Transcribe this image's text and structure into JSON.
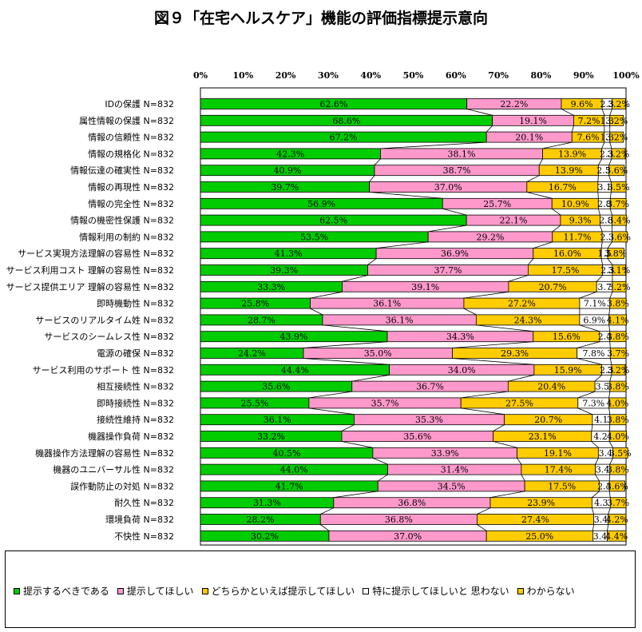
{
  "title": "図９「在宅ヘルスケア」機能の評価指標提示意向",
  "chart_data": {
    "type": "bar",
    "orientation": "horizontal",
    "stacked": true,
    "percent": true,
    "xlim": [
      0,
      100
    ],
    "ticks": [
      "0%",
      "10%",
      "20%",
      "30%",
      "40%",
      "50%",
      "60%",
      "70%",
      "80%",
      "90%",
      "100%"
    ],
    "legend_position": "bottom",
    "categories": [
      "IDの保護 N=832",
      "属性情報の保護 N=832",
      "情報の信頼性 N=832",
      "情報の規格化 N=832",
      "情報伝達の確実性 N=832",
      "情報の再現性 N=832",
      "情報の完全性 N=832",
      "情報の機密性保護 N=832",
      "情報利用の制約 N=832",
      "サービス実現方法理解の容易性 N=832",
      "サービス利用コスト 理解の容易性 N=832",
      "サービス提供エリア 理解の容易性 N=832",
      "即時機動性 N=832",
      "サービスのリアルタイム姓 N=832",
      "サービスのシームレス性 N=832",
      "電源の確保 N=832",
      "サービス利用のサポート 性 N=832",
      "相互接続性 N=832",
      "即時接続性 N=832",
      "接続性維持 N=832",
      "機器操作負荷 N=832",
      "機器操作方法理解の容易性 N=832",
      "機器のユニバーサル性 N=832",
      "誤作動防止の対処 N=832",
      "耐久性 N=832",
      "環境負荷 N=832",
      "不快性 N=832"
    ],
    "series": [
      {
        "name": "提示するべきである",
        "color": "#00cc00",
        "values": [
          62.6,
          68.6,
          67.2,
          42.3,
          40.9,
          39.7,
          56.9,
          62.5,
          53.5,
          41.3,
          39.3,
          33.3,
          25.8,
          28.7,
          43.9,
          24.2,
          44.4,
          35.6,
          25.5,
          36.1,
          33.2,
          40.5,
          44.0,
          41.7,
          31.3,
          28.2,
          30.2
        ],
        "labels": [
          "62.6%",
          "68.6%",
          "67.2%",
          "42.3%",
          "40.9%",
          "39.7%",
          "56.9%",
          "62.5%",
          "53.5%",
          "41.3%",
          "39.3%",
          "33.3%",
          "25.8%",
          "28.7%",
          "43.9%",
          "24.2%",
          "44.4%",
          "35.6%",
          "25.5%",
          "36.1%",
          "33.2%",
          "40.5%",
          "44.0%",
          "41.7%",
          "31.3%",
          "28.2%",
          "30.2%"
        ]
      },
      {
        "name": "提示してほしい",
        "color": "#ff99cc",
        "values": [
          22.2,
          19.1,
          20.1,
          38.1,
          38.7,
          37.0,
          25.7,
          22.1,
          29.2,
          36.9,
          37.7,
          39.1,
          36.1,
          36.1,
          34.3,
          35.0,
          34.0,
          36.7,
          35.7,
          35.3,
          35.6,
          33.9,
          31.4,
          34.5,
          36.8,
          36.8,
          37.0
        ],
        "labels": [
          "22.2%",
          "19.1%",
          "20.1%",
          "38.1%",
          "38.7%",
          "37.0%",
          "25.7%",
          "22.1%",
          "29.2%",
          "36.9%",
          "37.7%",
          "39.1%",
          "36.1%",
          "36.1%",
          "34.3%",
          "35.0%",
          "34.0%",
          "36.7%",
          "35.7%",
          "35.3%",
          "35.6%",
          "33.9%",
          "31.4%",
          "34.5%",
          "36.8%",
          "36.8%",
          "37.0%"
        ]
      },
      {
        "name": "どちらかといえば提示してほしい",
        "color": "#ffcc00",
        "values": [
          9.6,
          7.2,
          7.6,
          13.9,
          13.9,
          16.7,
          10.9,
          9.3,
          11.7,
          16.0,
          17.5,
          20.7,
          27.2,
          24.3,
          15.6,
          29.3,
          15.9,
          20.4,
          27.5,
          20.7,
          23.1,
          19.1,
          17.4,
          17.5,
          23.9,
          27.4,
          25.0
        ],
        "labels": [
          "9.6%",
          "7.2%",
          "7.6%",
          "13.9%",
          "13.9%",
          "16.7%",
          "10.9%",
          "9.3%",
          "11.7%",
          "16.0%",
          "17.5%",
          "20.7%",
          "27.2%",
          "24.3%",
          "15.6%",
          "29.3%",
          "15.9%",
          "20.4%",
          "27.5%",
          "20.7%",
          "23.1%",
          "19.1%",
          "17.4%",
          "17.5%",
          "23.9%",
          "27.4%",
          "25.0%"
        ]
      },
      {
        "name": "特に提示してほしいと 思わない",
        "color": "#ffffff",
        "values": [
          2.3,
          1.3,
          1.3,
          2.3,
          2.5,
          3.1,
          2.8,
          2.8,
          2.3,
          1.5,
          2.3,
          3.7,
          7.1,
          6.9,
          2.4,
          7.8,
          2.3,
          3.5,
          7.3,
          4.1,
          4.2,
          3.4,
          3.4,
          2.4,
          4.3,
          3.4,
          3.4
        ],
        "labels": [
          "2.3",
          "1.3",
          "1.3",
          "2.3",
          "2.5",
          "3.1",
          "2.8",
          "2.8",
          "2.3",
          "1.5",
          "2.3",
          "3.7",
          "7.1%",
          "6.9%",
          "2.4",
          "7.8%",
          "2.3",
          "3.5",
          "7.3%",
          "4.1",
          "4.2",
          "3.4",
          "3.4",
          "2.4",
          "4.3",
          "3.4",
          "3.4"
        ]
      },
      {
        "name": "わからない",
        "color": "#ffcc00",
        "values": [
          3.2,
          3.2,
          3.2,
          3.2,
          3.6,
          3.5,
          3.7,
          3.4,
          3.6,
          3.8,
          3.1,
          3.2,
          3.8,
          4.1,
          3.8,
          3.7,
          3.2,
          3.8,
          4.0,
          3.8,
          4.0,
          3.5,
          3.8,
          3.6,
          3.7,
          4.2,
          4.4
        ],
        "labels": [
          "3.2%",
          "3.2%",
          "3.2%",
          "3.2%",
          "3.6%",
          "3.5%",
          "3.7%",
          "3.4%",
          "3.6%",
          "3.8%",
          "3.1%",
          "3.2%",
          "3.8%",
          "4.1%",
          "3.8%",
          "3.7%",
          "3.2%",
          "3.8%",
          "4.0%",
          "3.8%",
          "4.0%",
          "3.5%",
          "3.8%",
          "3.6%",
          "3.7%",
          "4.2%",
          "4.4%"
        ]
      }
    ]
  }
}
